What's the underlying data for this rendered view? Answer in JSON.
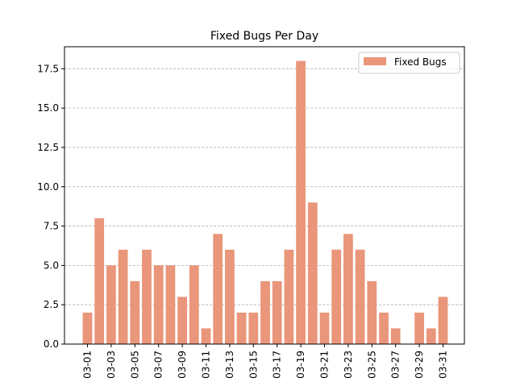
{
  "chart_data": {
    "type": "bar",
    "title": "Fixed Bugs Per Day",
    "xlabel": "",
    "ylabel": "",
    "ylim": [
      0,
      18.9
    ],
    "yticks": [
      0.0,
      2.5,
      5.0,
      7.5,
      10.0,
      12.5,
      15.0,
      17.5
    ],
    "ytick_labels": [
      "0.0",
      "2.5",
      "5.0",
      "7.5",
      "10.0",
      "12.5",
      "15.0",
      "17.5"
    ],
    "categories": [
      "03-01",
      "03-02",
      "03-03",
      "03-04",
      "03-05",
      "03-06",
      "03-07",
      "03-08",
      "03-09",
      "03-10",
      "03-11",
      "03-12",
      "03-13",
      "03-14",
      "03-15",
      "03-16",
      "03-17",
      "03-18",
      "03-19",
      "03-20",
      "03-21",
      "03-22",
      "03-23",
      "03-24",
      "03-25",
      "03-26",
      "03-27",
      "03-28",
      "03-29",
      "03-30",
      "03-31"
    ],
    "xtick_labels": [
      "03-01",
      "03-03",
      "03-05",
      "03-07",
      "03-09",
      "03-11",
      "03-13",
      "03-15",
      "03-17",
      "03-19",
      "03-21",
      "03-23",
      "03-25",
      "03-27",
      "03-29",
      "03-31"
    ],
    "series": [
      {
        "name": "Fixed Bugs",
        "color": "#e9967a",
        "values": [
          2,
          8,
          5,
          6,
          4,
          6,
          5,
          5,
          3,
          5,
          1,
          7,
          6,
          2,
          2,
          4,
          4,
          6,
          18,
          9,
          2,
          6,
          7,
          6,
          4,
          2,
          1,
          0,
          2,
          1,
          3
        ]
      }
    ],
    "grid": "y-dashed",
    "legend_position": "top-right"
  }
}
